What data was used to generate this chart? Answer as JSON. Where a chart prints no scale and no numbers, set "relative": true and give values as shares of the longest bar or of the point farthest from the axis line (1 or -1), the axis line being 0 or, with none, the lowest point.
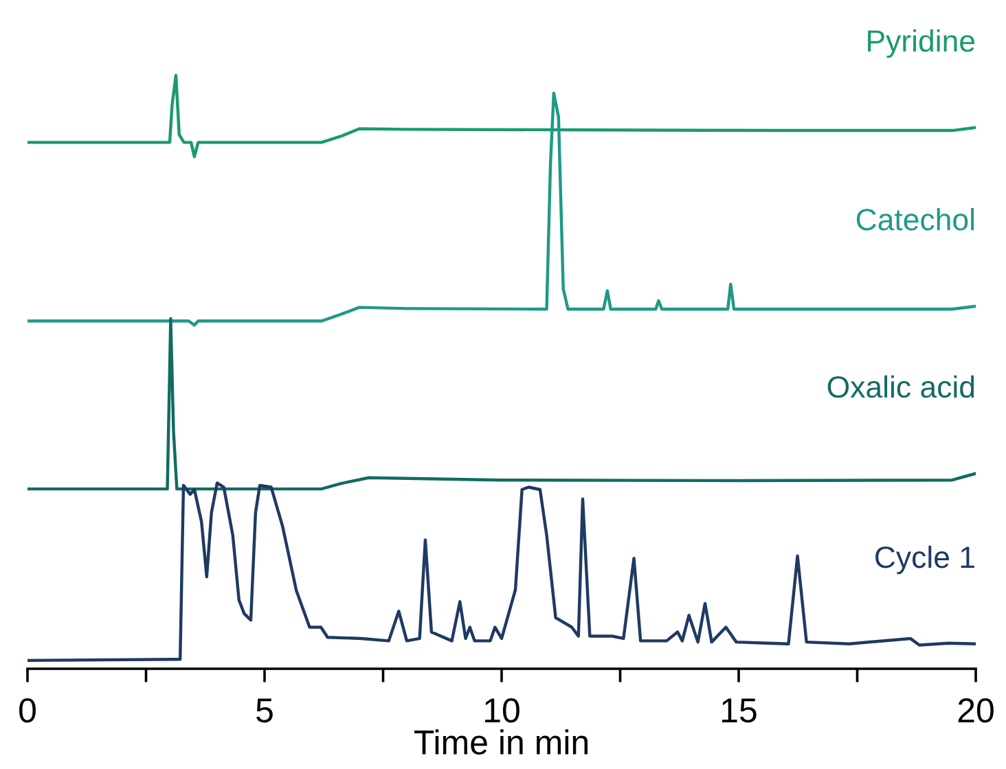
{
  "chart_data": {
    "type": "line",
    "relative": true,
    "xlabel": "Time in min",
    "tick_labels": "x",
    "grid": false,
    "legend": false,
    "marker": "none",
    "line_style": "solid",
    "xlim": [
      0,
      20
    ],
    "xticks": [
      0,
      {
        "value": 2.5,
        "label": null
      },
      5,
      {
        "value": 7.5,
        "label": null
      },
      10,
      {
        "value": 12.5,
        "label": null
      },
      15,
      {
        "value": 17.5,
        "label": null
      },
      20
    ],
    "series": [
      {
        "name": "Pyridine",
        "color": "#1a9a6e",
        "x": [
          0,
          3.0,
          3.05,
          3.13,
          3.2,
          3.3,
          3.45,
          3.52,
          3.6,
          6.2,
          6.6,
          7.0,
          8.0,
          12,
          16,
          19.5,
          20
        ],
        "values": [
          0.887,
          0.887,
          0.95,
          1.0,
          0.9,
          0.887,
          0.887,
          0.863,
          0.887,
          0.887,
          0.897,
          0.91,
          0.909,
          0.908,
          0.907,
          0.907,
          0.912
        ]
      },
      {
        "name": "Catechol",
        "color": "#1f9988",
        "x": [
          0,
          3.4,
          3.52,
          3.6,
          6.2,
          6.6,
          7.0,
          8.0,
          10.95,
          11.03,
          11.1,
          11.2,
          11.3,
          11.4,
          12.15,
          12.23,
          12.3,
          13.25,
          13.31,
          13.38,
          14.77,
          14.83,
          14.9,
          19.5,
          20
        ],
        "values": [
          0.586,
          0.586,
          0.579,
          0.586,
          0.586,
          0.597,
          0.609,
          0.607,
          0.606,
          0.85,
          0.97,
          0.93,
          0.64,
          0.606,
          0.606,
          0.637,
          0.606,
          0.606,
          0.62,
          0.606,
          0.606,
          0.648,
          0.606,
          0.606,
          0.611
        ]
      },
      {
        "name": "Oxalic acid",
        "color": "#136b63",
        "x": [
          0,
          2.95,
          3.02,
          3.08,
          3.15,
          6.2,
          6.6,
          7.2,
          10,
          15,
          19.5,
          20
        ],
        "values": [
          0.303,
          0.303,
          0.59,
          0.4,
          0.303,
          0.303,
          0.312,
          0.322,
          0.318,
          0.317,
          0.318,
          0.329
        ]
      },
      {
        "name": "Cycle 1",
        "color": "#1f3a63",
        "x": [
          0,
          3.22,
          3.29,
          3.43,
          3.52,
          3.67,
          3.78,
          3.88,
          4.0,
          4.14,
          4.33,
          4.46,
          4.57,
          4.71,
          4.81,
          4.9,
          5.14,
          5.38,
          5.67,
          5.95,
          6.19,
          6.33,
          7.05,
          7.62,
          7.83,
          8.0,
          8.27,
          8.39,
          8.52,
          8.95,
          9.12,
          9.24,
          9.33,
          9.43,
          9.76,
          9.86,
          10.0,
          10.29,
          10.43,
          10.57,
          10.81,
          10.95,
          11.14,
          11.48,
          11.62,
          11.71,
          11.86,
          12.33,
          12.57,
          12.79,
          12.93,
          13.48,
          13.71,
          13.81,
          13.95,
          14.14,
          14.29,
          14.43,
          14.73,
          14.95,
          15.62,
          16.05,
          16.24,
          16.43,
          17.33,
          18.62,
          18.81,
          19.43,
          20.0
        ],
        "values": [
          0.014,
          0.016,
          0.309,
          0.294,
          0.302,
          0.248,
          0.155,
          0.263,
          0.313,
          0.306,
          0.225,
          0.116,
          0.093,
          0.082,
          0.263,
          0.309,
          0.306,
          0.24,
          0.132,
          0.07,
          0.07,
          0.053,
          0.051,
          0.047,
          0.097,
          0.047,
          0.051,
          0.217,
          0.062,
          0.047,
          0.113,
          0.051,
          0.07,
          0.047,
          0.047,
          0.07,
          0.051,
          0.133,
          0.302,
          0.306,
          0.302,
          0.225,
          0.086,
          0.07,
          0.055,
          0.286,
          0.055,
          0.055,
          0.051,
          0.186,
          0.047,
          0.047,
          0.062,
          0.047,
          0.09,
          0.045,
          0.11,
          0.045,
          0.07,
          0.045,
          0.043,
          0.042,
          0.19,
          0.045,
          0.042,
          0.051,
          0.04,
          0.043,
          0.042
        ]
      }
    ]
  }
}
